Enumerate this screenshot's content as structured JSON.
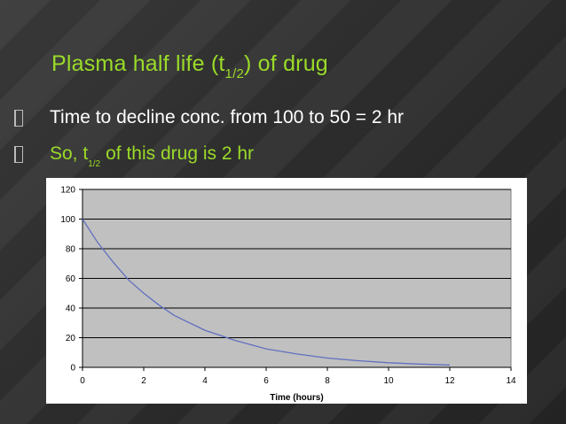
{
  "slide": {
    "title_main": "Plasma half life (t",
    "title_sub": "1/2",
    "title_end": ") of drug",
    "bullet1": "Time to decline conc. from 100 to 50 = 2 hr",
    "bullet2_pre": "So, t",
    "bullet2_sub": "1/2",
    "bullet2_post": "of this drug is 2 hr"
  },
  "colors": {
    "accent": "#9adb28",
    "curve": "#6070c0",
    "plot_area": "#c0c0c0"
  },
  "chart_data": {
    "type": "line",
    "title": "",
    "xlabel": "Time (hours)",
    "ylabel": "",
    "xlim": [
      0,
      14
    ],
    "ylim": [
      0,
      120
    ],
    "x_ticks": [
      0,
      2,
      4,
      6,
      8,
      10,
      12,
      14
    ],
    "y_ticks": [
      0,
      20,
      40,
      60,
      80,
      100,
      120
    ],
    "grid": "horizontal",
    "series": [
      {
        "x": [
          0,
          0.5,
          1,
          1.5,
          2,
          2.5,
          3,
          4,
          5,
          6,
          7,
          8,
          9,
          10,
          11,
          12
        ],
        "values": [
          100,
          84,
          71,
          59,
          50,
          42,
          35,
          25,
          18,
          12.5,
          9,
          6.25,
          4.5,
          3.1,
          2.2,
          1.6
        ]
      }
    ]
  }
}
